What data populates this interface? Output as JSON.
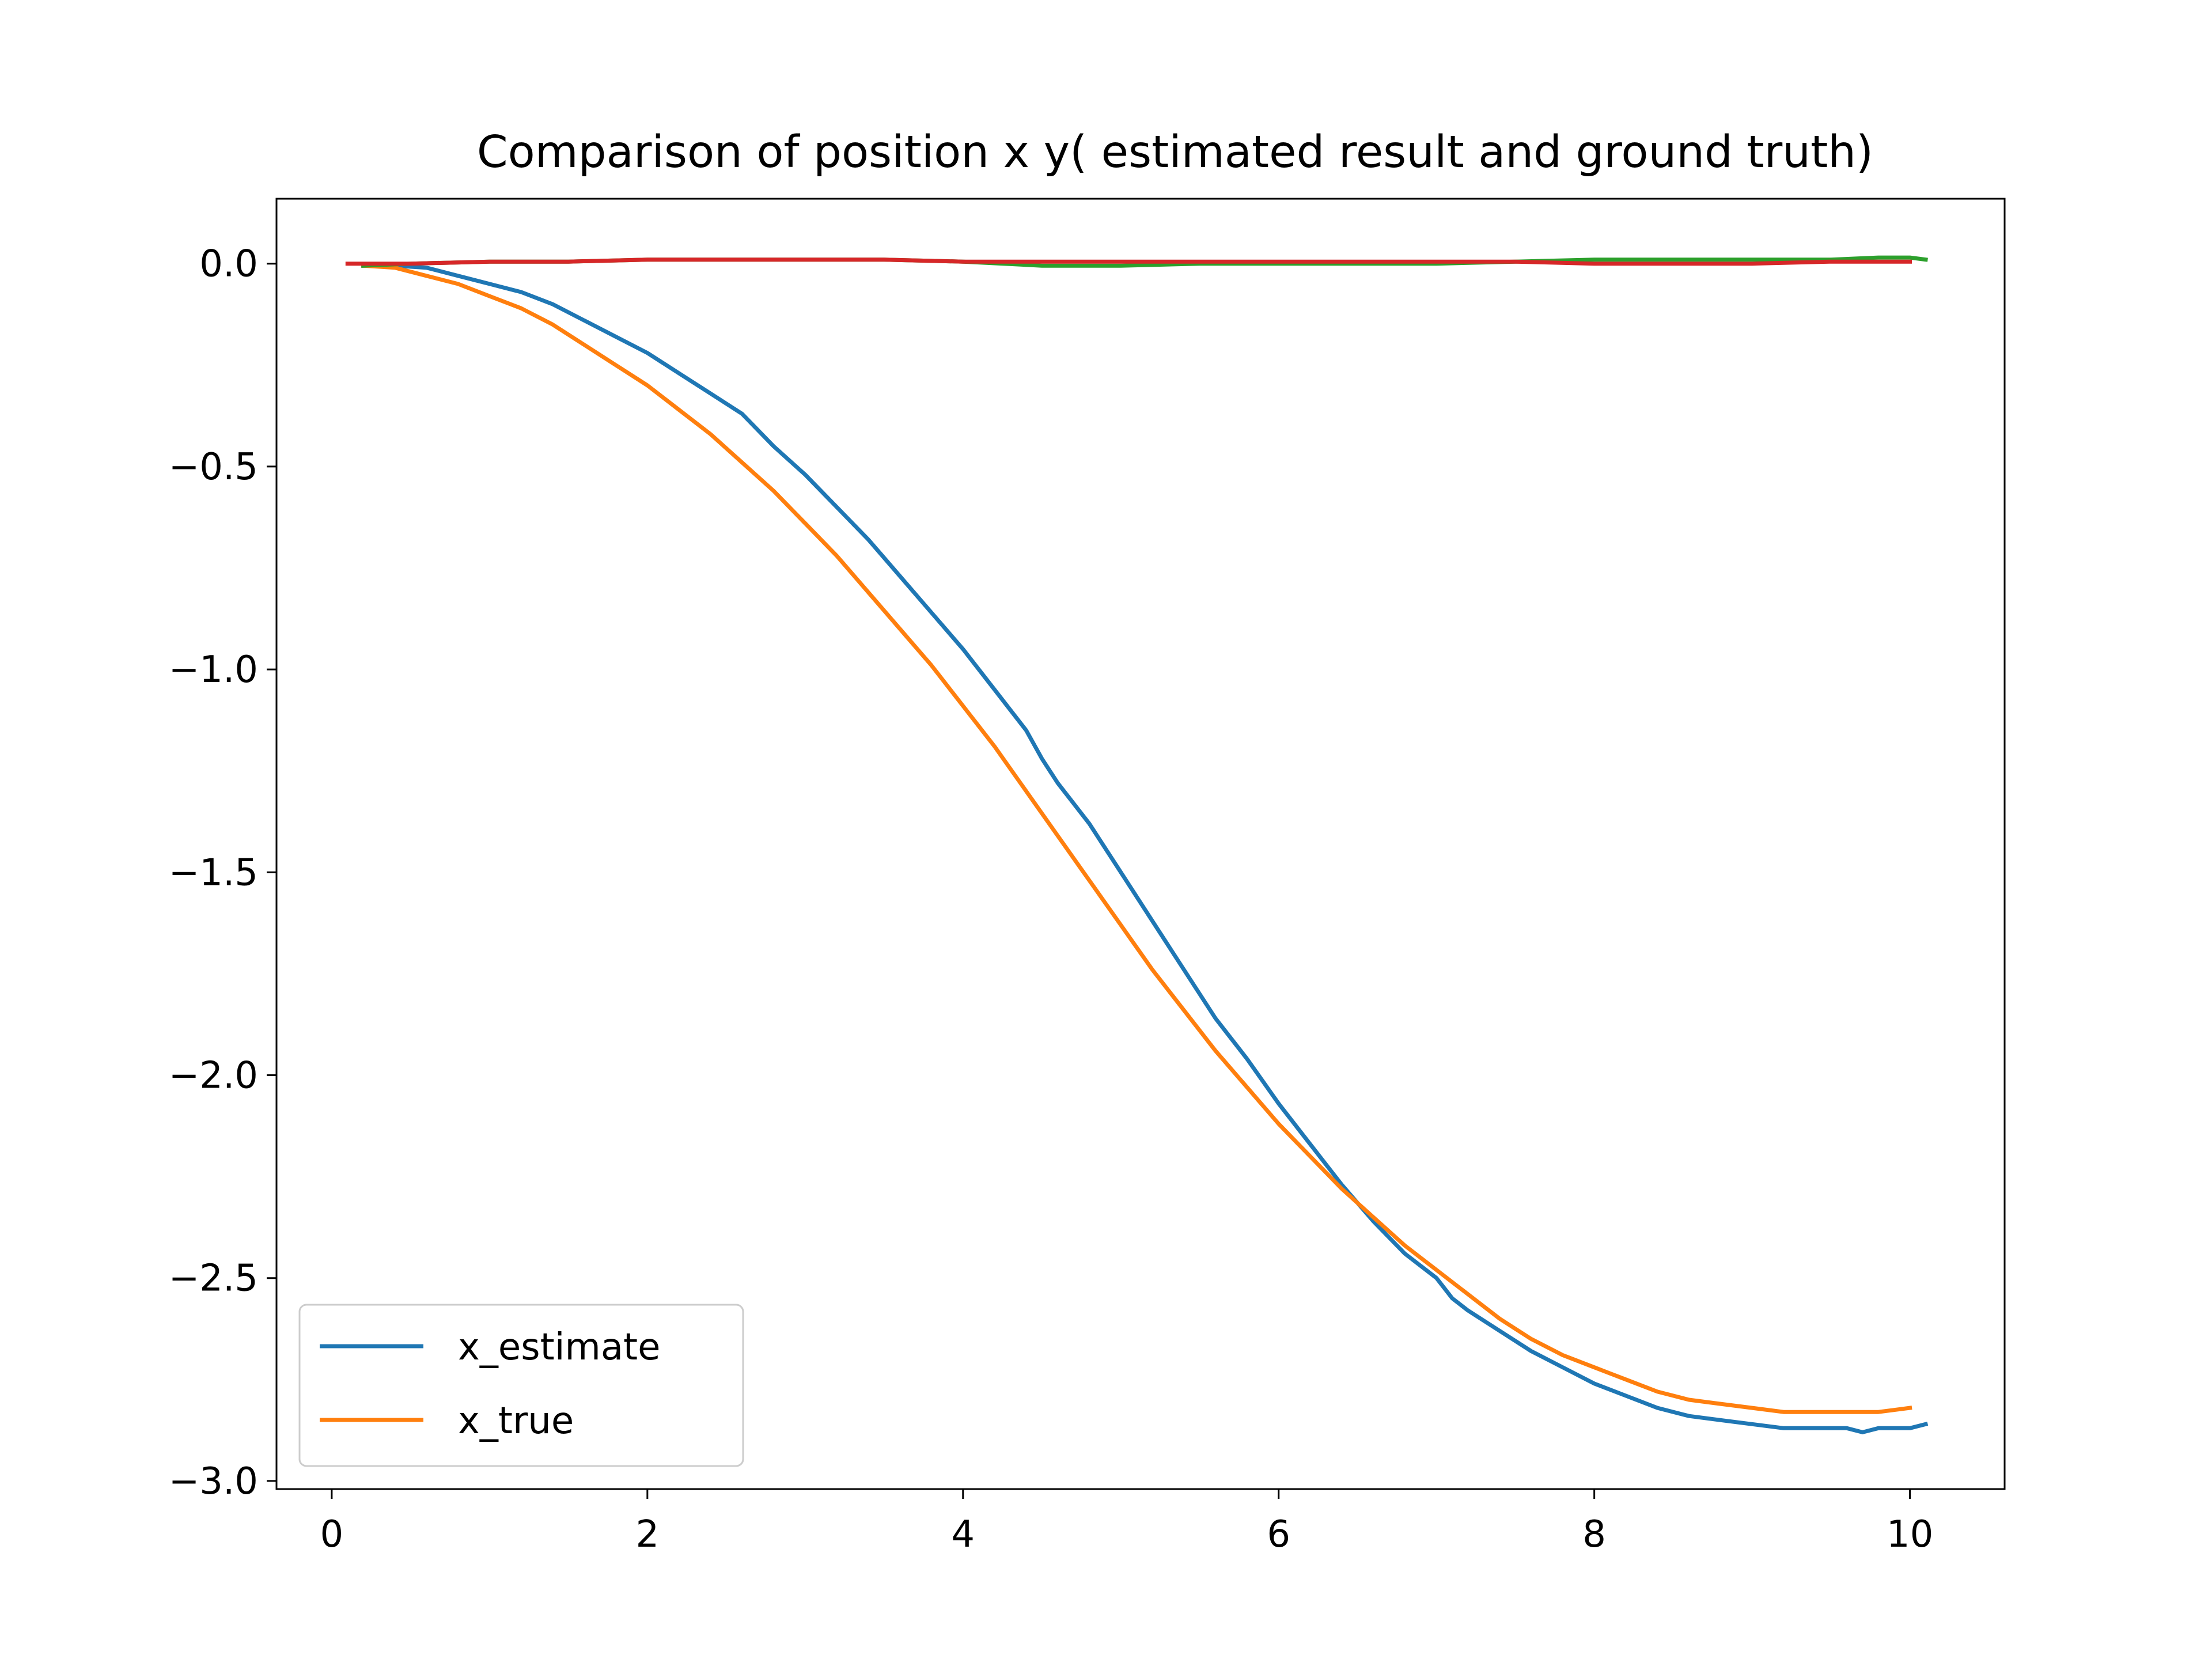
{
  "chart_data": {
    "type": "line",
    "title": "Comparison of position x y( estimated result and ground truth)",
    "xlabel": "",
    "ylabel": "",
    "xlim": [
      -0.35,
      10.6
    ],
    "ylim": [
      -3.02,
      0.16
    ],
    "xticks": [
      0,
      2,
      4,
      6,
      8,
      10
    ],
    "yticks": [
      0.0,
      -0.5,
      -1.0,
      -1.5,
      -2.0,
      -2.5,
      -3.0
    ],
    "xtick_labels": [
      "0",
      "2",
      "4",
      "6",
      "8",
      "10"
    ],
    "ytick_labels": [
      "0.0",
      "−0.5",
      "−1.0",
      "−1.5",
      "−2.0",
      "−2.5",
      "−3.0"
    ],
    "grid": false,
    "legend": {
      "position": "lower-left",
      "entries": [
        "x_estimate",
        "x_true"
      ]
    },
    "series": [
      {
        "name": "x_estimate",
        "color": "#1f77b4",
        "x": [
          0.2,
          0.4,
          0.6,
          0.8,
          1.0,
          1.2,
          1.4,
          1.6,
          1.8,
          2.0,
          2.2,
          2.4,
          2.6,
          2.8,
          3.0,
          3.2,
          3.4,
          3.6,
          3.8,
          4.0,
          4.2,
          4.4,
          4.5,
          4.6,
          4.8,
          5.0,
          5.2,
          5.4,
          5.6,
          5.8,
          6.0,
          6.2,
          6.4,
          6.6,
          6.7,
          6.8,
          7.0,
          7.1,
          7.2,
          7.4,
          7.6,
          7.8,
          8.0,
          8.2,
          8.4,
          8.6,
          8.8,
          9.0,
          9.2,
          9.4,
          9.6,
          9.7,
          9.8,
          10.0,
          10.1
        ],
        "y": [
          -0.005,
          -0.005,
          -0.01,
          -0.03,
          -0.05,
          -0.07,
          -0.1,
          -0.14,
          -0.18,
          -0.22,
          -0.27,
          -0.32,
          -0.37,
          -0.45,
          -0.52,
          -0.6,
          -0.68,
          -0.77,
          -0.86,
          -0.95,
          -1.05,
          -1.15,
          -1.22,
          -1.28,
          -1.38,
          -1.5,
          -1.62,
          -1.74,
          -1.86,
          -1.96,
          -2.07,
          -2.17,
          -2.27,
          -2.36,
          -2.4,
          -2.44,
          -2.5,
          -2.55,
          -2.58,
          -2.63,
          -2.68,
          -2.72,
          -2.76,
          -2.79,
          -2.82,
          -2.84,
          -2.85,
          -2.86,
          -2.87,
          -2.87,
          -2.87,
          -2.88,
          -2.87,
          -2.87,
          -2.86
        ]
      },
      {
        "name": "x_true",
        "color": "#ff7f0e",
        "x": [
          0.2,
          0.4,
          0.6,
          0.8,
          1.0,
          1.2,
          1.4,
          1.6,
          1.8,
          2.0,
          2.2,
          2.4,
          2.6,
          2.8,
          3.0,
          3.2,
          3.4,
          3.6,
          3.8,
          4.0,
          4.2,
          4.4,
          4.6,
          4.8,
          5.0,
          5.2,
          5.4,
          5.6,
          5.8,
          6.0,
          6.2,
          6.4,
          6.6,
          6.8,
          7.0,
          7.2,
          7.4,
          7.6,
          7.8,
          8.0,
          8.2,
          8.4,
          8.6,
          8.8,
          9.0,
          9.2,
          9.4,
          9.6,
          9.8,
          10.0
        ],
        "y": [
          -0.005,
          -0.01,
          -0.03,
          -0.05,
          -0.08,
          -0.11,
          -0.15,
          -0.2,
          -0.25,
          -0.3,
          -0.36,
          -0.42,
          -0.49,
          -0.56,
          -0.64,
          -0.72,
          -0.81,
          -0.9,
          -0.99,
          -1.09,
          -1.19,
          -1.3,
          -1.41,
          -1.52,
          -1.63,
          -1.74,
          -1.84,
          -1.94,
          -2.03,
          -2.12,
          -2.2,
          -2.28,
          -2.35,
          -2.42,
          -2.48,
          -2.54,
          -2.6,
          -2.65,
          -2.69,
          -2.72,
          -2.75,
          -2.78,
          -2.8,
          -2.81,
          -2.82,
          -2.83,
          -2.83,
          -2.83,
          -2.83,
          -2.82
        ]
      },
      {
        "name": "",
        "color": "#2ca02c",
        "x": [
          0.2,
          0.5,
          1.0,
          1.5,
          2.0,
          2.5,
          3.0,
          3.5,
          4.0,
          4.5,
          5.0,
          5.5,
          6.0,
          6.5,
          7.0,
          7.5,
          8.0,
          8.5,
          9.0,
          9.5,
          9.8,
          10.0,
          10.1
        ],
        "y": [
          -0.005,
          0.0,
          0.005,
          0.005,
          0.01,
          0.01,
          0.01,
          0.01,
          0.005,
          -0.005,
          -0.005,
          0.0,
          0.0,
          0.0,
          0.0,
          0.005,
          0.01,
          0.01,
          0.01,
          0.01,
          0.015,
          0.015,
          0.01
        ]
      },
      {
        "name": "",
        "color": "#d62728",
        "x": [
          0.1,
          0.5,
          1.0,
          1.5,
          2.0,
          2.5,
          3.0,
          3.5,
          4.0,
          4.5,
          5.0,
          5.5,
          6.0,
          6.5,
          7.0,
          7.5,
          8.0,
          8.5,
          9.0,
          9.5,
          10.0
        ],
        "y": [
          0.0,
          0.0,
          0.005,
          0.005,
          0.01,
          0.01,
          0.01,
          0.01,
          0.005,
          0.005,
          0.005,
          0.005,
          0.005,
          0.005,
          0.005,
          0.005,
          0.0,
          0.0,
          0.0,
          0.005,
          0.005
        ]
      }
    ]
  }
}
